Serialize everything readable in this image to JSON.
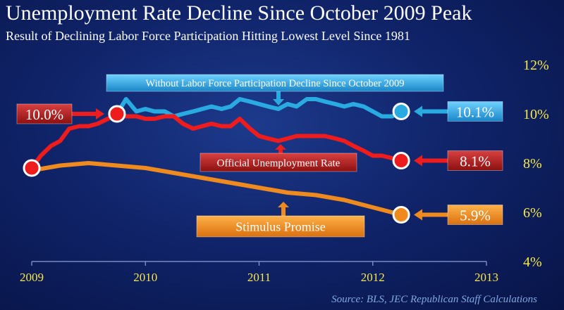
{
  "title": "Unemployment Rate Decline Since October 2009 Peak",
  "subtitle": "Result of Declining Labor Force Participation Hitting Lowest Level Since 1981",
  "source": "Source:  BLS, JEC Republican Staff Calculations",
  "colors": {
    "official": "#ee1c1c",
    "without": "#29abe2",
    "stimulus": "#ef8a1e",
    "axis_text": "#f5e84a",
    "background": "#10246a"
  },
  "chart_data": {
    "type": "line",
    "title": "Unemployment Rate Decline Since October 2009 Peak",
    "xlabel": "",
    "ylabel": "",
    "xlim": [
      2009.0,
      2013.0
    ],
    "ylim": [
      4,
      12
    ],
    "x_ticks": [
      2009,
      2010,
      2011,
      2012,
      2013
    ],
    "x_tick_labels": [
      "2009",
      "2010",
      "2011",
      "2012",
      "2013"
    ],
    "y_ticks": [
      4,
      6,
      8,
      10,
      12
    ],
    "y_tick_labels": [
      "4%",
      "6%",
      "8%",
      "10%",
      "12%"
    ],
    "series": [
      {
        "name": "Official Unemployment Rate",
        "color": "#ee1c1c",
        "label": "Official Unemployment Rate",
        "x": [
          2009.0,
          2009.08,
          2009.17,
          2009.25,
          2009.33,
          2009.42,
          2009.5,
          2009.58,
          2009.67,
          2009.75,
          2009.83,
          2009.92,
          2010.0,
          2010.08,
          2010.17,
          2010.25,
          2010.33,
          2010.42,
          2010.5,
          2010.58,
          2010.67,
          2010.75,
          2010.83,
          2010.92,
          2011.0,
          2011.08,
          2011.17,
          2011.25,
          2011.33,
          2011.42,
          2011.5,
          2011.58,
          2011.67,
          2011.75,
          2011.83,
          2011.92,
          2012.0,
          2012.08,
          2012.17,
          2012.25
        ],
        "y": [
          7.8,
          8.3,
          8.7,
          8.9,
          9.4,
          9.5,
          9.5,
          9.6,
          9.8,
          10.0,
          9.9,
          9.9,
          9.8,
          9.8,
          9.9,
          9.9,
          9.6,
          9.4,
          9.5,
          9.6,
          9.5,
          9.5,
          9.8,
          9.4,
          9.1,
          9.0,
          8.9,
          9.0,
          9.1,
          9.1,
          9.1,
          9.1,
          9.0,
          8.9,
          8.7,
          8.5,
          8.3,
          8.3,
          8.2,
          8.1
        ]
      },
      {
        "name": "Without Labor Force Participation Decline Since October 2009",
        "color": "#29abe2",
        "label": "Without Labor Force Participation Decline Since October 2009",
        "x": [
          2009.75,
          2009.83,
          2009.92,
          2010.0,
          2010.08,
          2010.17,
          2010.25,
          2010.33,
          2010.42,
          2010.5,
          2010.58,
          2010.67,
          2010.75,
          2010.83,
          2010.92,
          2011.0,
          2011.08,
          2011.17,
          2011.25,
          2011.33,
          2011.42,
          2011.5,
          2011.58,
          2011.67,
          2011.75,
          2011.83,
          2011.92,
          2012.0,
          2012.08,
          2012.17,
          2012.25
        ],
        "y": [
          10.0,
          10.6,
          10.1,
          10.2,
          10.1,
          10.1,
          9.9,
          10.0,
          10.1,
          10.2,
          10.3,
          10.2,
          10.3,
          10.6,
          10.5,
          10.4,
          10.3,
          10.2,
          10.4,
          10.3,
          10.6,
          10.6,
          10.5,
          10.4,
          10.3,
          10.4,
          10.3,
          10.1,
          9.9,
          9.9,
          10.1
        ]
      },
      {
        "name": "Stimulus Promise",
        "color": "#ef8a1e",
        "label": "Stimulus Promise",
        "x": [
          2009.0,
          2009.25,
          2009.5,
          2009.75,
          2010.0,
          2010.25,
          2010.5,
          2010.75,
          2011.0,
          2011.25,
          2011.5,
          2011.75,
          2012.0,
          2012.25
        ],
        "y": [
          7.7,
          7.9,
          8.0,
          7.9,
          7.8,
          7.6,
          7.4,
          7.2,
          7.0,
          6.8,
          6.7,
          6.5,
          6.2,
          5.9
        ]
      }
    ],
    "callouts": [
      {
        "series": 0,
        "x": 2009.0,
        "y": 7.8,
        "label": "",
        "marker": "circle"
      },
      {
        "series": 0,
        "x": 2009.75,
        "y": 10.0,
        "label": "10.0%",
        "side": "left",
        "marker": "circle"
      },
      {
        "series": 1,
        "x": 2012.25,
        "y": 10.1,
        "label": "10.1%",
        "side": "right",
        "marker": "circle"
      },
      {
        "series": 0,
        "x": 2012.25,
        "y": 8.1,
        "label": "8.1%",
        "side": "right",
        "marker": "circle"
      },
      {
        "series": 2,
        "x": 2012.25,
        "y": 5.9,
        "label": "5.9%",
        "side": "right",
        "marker": "circle"
      }
    ]
  }
}
